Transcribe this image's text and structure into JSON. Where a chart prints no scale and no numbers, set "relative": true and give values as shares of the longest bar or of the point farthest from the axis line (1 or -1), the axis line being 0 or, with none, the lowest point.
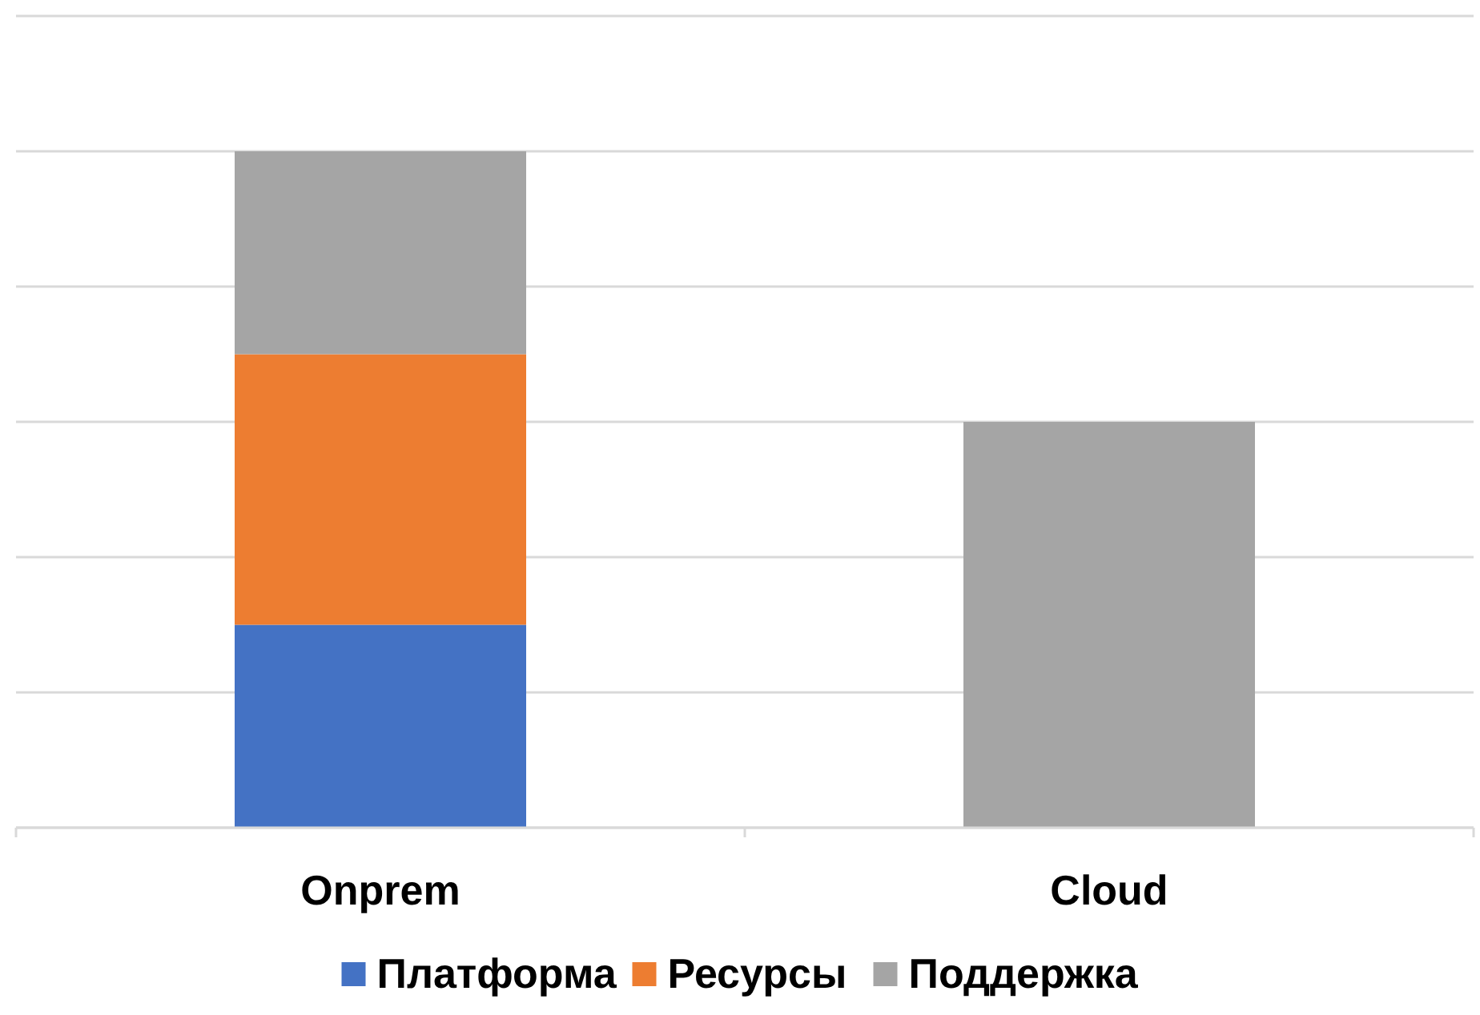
{
  "chart_data": {
    "type": "bar",
    "stacked": true,
    "relative": true,
    "categories": [
      "Onprem",
      "Cloud"
    ],
    "series": [
      {
        "name": "Платформа",
        "color": "#4472c4",
        "values": [
          0.3,
          null
        ]
      },
      {
        "name": "Ресурсы",
        "color": "#ed7d31",
        "values": [
          0.4,
          null
        ]
      },
      {
        "name": "Поддержка",
        "color": "#a5a5a5",
        "values": [
          0.3,
          0.6
        ]
      }
    ],
    "grid": "y",
    "legend": "bottom"
  }
}
